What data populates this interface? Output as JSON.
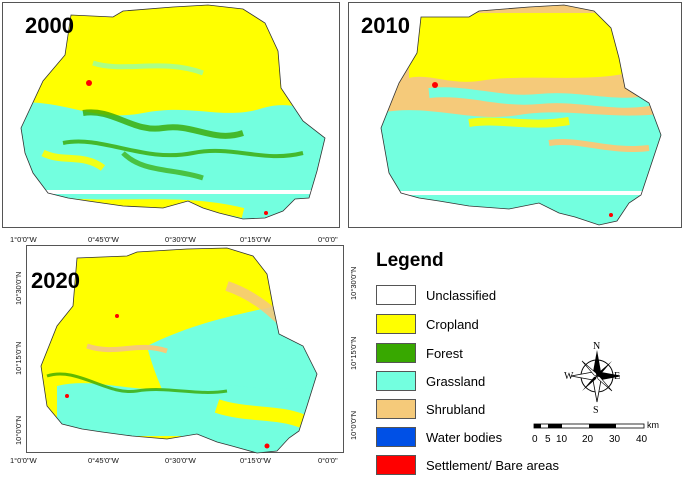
{
  "panels": [
    {
      "year": "2000"
    },
    {
      "year": "2010"
    },
    {
      "year": "2020"
    }
  ],
  "axes": {
    "lon_ticks": [
      "1°0'0\"W",
      "0°45'0\"W",
      "0°30'0\"W",
      "0°15'0\"W",
      "0°0'0\""
    ],
    "lat_ticks": [
      "10°30'0\"N",
      "10°15'0\"N",
      "10°0'0\"N"
    ]
  },
  "legend": {
    "title": "Legend",
    "items": [
      {
        "label": "Unclassified",
        "color": "#ffffff"
      },
      {
        "label": "Cropland",
        "color": "#ffff00"
      },
      {
        "label": "Forest",
        "color": "#38a800"
      },
      {
        "label": "Grassland",
        "color": "#73ffdf"
      },
      {
        "label": "Shrubland",
        "color": "#f5ca7a"
      },
      {
        "label": "Water bodies",
        "color": "#0050e6"
      },
      {
        "label": "Settlement/ Bare areas",
        "color": "#ff0000"
      }
    ]
  },
  "compass": {
    "n": "N",
    "s": "S",
    "e": "E",
    "w": "W"
  },
  "scale": {
    "unit": "km",
    "labels": [
      "0",
      "5",
      "10",
      "20",
      "30",
      "40"
    ]
  }
}
